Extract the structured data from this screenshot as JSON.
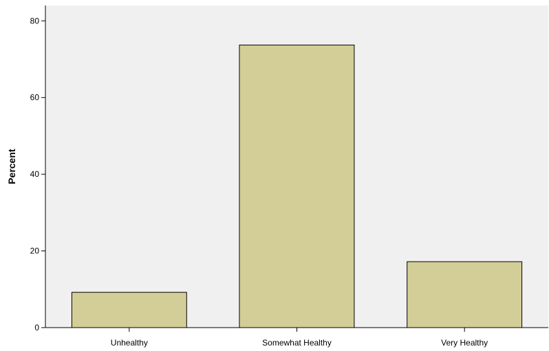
{
  "chart_data": {
    "type": "bar",
    "categories": [
      "Unhealthy",
      "Somewhat Healthy",
      "Very Healthy"
    ],
    "values": [
      9.2,
      73.7,
      17.2
    ],
    "title": "",
    "xlabel": "",
    "ylabel": "Percent",
    "ylim": [
      0,
      84
    ],
    "yticks": [
      "0",
      "20",
      "40",
      "60",
      "80"
    ],
    "grid": false,
    "colors": {
      "bar_fill": "#d3ce98",
      "bar_stroke": "#000000",
      "plot_background": "#f0f0f0"
    }
  }
}
